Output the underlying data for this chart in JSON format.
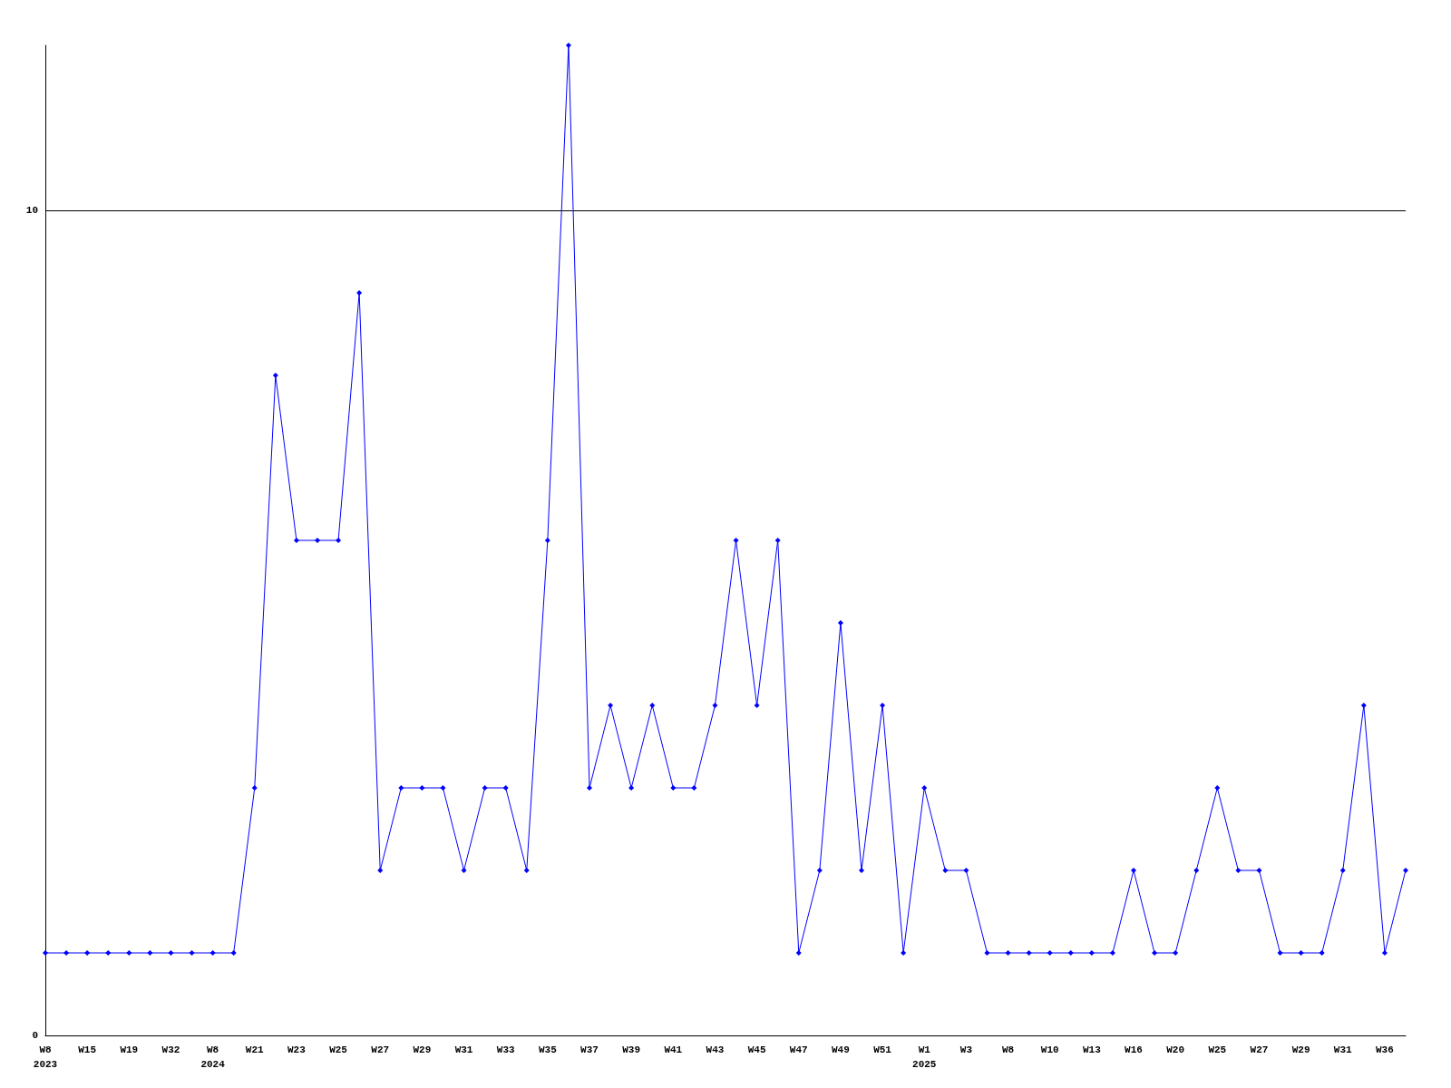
{
  "chart_data": {
    "type": "line",
    "categories": [
      "W8\n2023",
      null,
      "W15",
      null,
      "W19",
      null,
      "W32",
      null,
      "W8\n2024",
      null,
      "W21",
      null,
      "W23",
      null,
      "W25",
      null,
      "W27",
      null,
      "W29",
      null,
      "W31",
      null,
      "W33",
      null,
      "W35",
      null,
      "W37",
      null,
      "W39",
      null,
      "W41",
      null,
      "W43",
      null,
      "W45",
      null,
      "W47",
      null,
      "W49",
      null,
      "W51",
      null,
      "W1\n2025",
      null,
      "W3",
      null,
      "W8",
      null,
      "W10",
      null,
      "W13",
      null,
      "W16",
      null,
      "W20",
      null,
      "W25",
      null,
      "W27",
      null,
      "W29",
      null,
      "W31",
      null,
      "W36",
      null
    ],
    "series": [
      {
        "color": "#0000ff",
        "values": [
          1,
          1,
          1,
          1,
          1,
          1,
          1,
          1,
          1,
          1,
          3,
          8,
          6,
          6,
          6,
          9,
          2,
          3,
          3,
          3,
          2,
          3,
          3,
          2,
          6,
          12,
          3,
          4,
          3,
          4,
          3,
          3,
          4,
          6,
          4,
          6,
          1,
          2,
          5,
          2,
          4,
          1,
          3,
          2,
          2,
          1,
          1,
          1,
          1,
          1,
          1,
          1,
          2,
          1,
          1,
          2,
          3,
          2,
          2,
          1,
          1,
          1,
          2,
          4,
          1,
          2
        ]
      }
    ],
    "ylim": [
      0,
      12
    ],
    "yticks": [
      0,
      10
    ],
    "grid": "y",
    "marker": "diamond",
    "line_style": "solid"
  }
}
